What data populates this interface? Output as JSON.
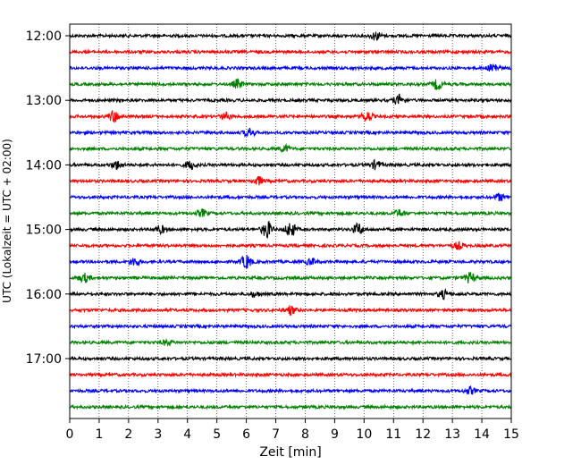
{
  "chart_data": {
    "type": "line",
    "title": "",
    "xlabel": "Zeit  [min]",
    "ylabel": "UTC (Lokalzeit = UTC + 02:00)",
    "xlim": [
      0,
      15
    ],
    "x_ticks": [
      "0",
      "1",
      "2",
      "3",
      "4",
      "5",
      "6",
      "7",
      "8",
      "9",
      "10",
      "11",
      "12",
      "13",
      "14",
      "15"
    ],
    "y_ticks": [
      "12:00",
      "13:00",
      "14:00",
      "15:00",
      "16:00",
      "17:00"
    ],
    "grid": "vertical dotted lines at each minute",
    "row_interval_minutes": 15,
    "series": [
      {
        "start": "12:00",
        "color": "#000000",
        "events": [
          [
            10.4,
            0.5
          ]
        ]
      },
      {
        "start": "12:15",
        "color": "#ff0000",
        "events": []
      },
      {
        "start": "12:30",
        "color": "#0000ff",
        "events": [
          [
            14.4,
            0.6
          ]
        ]
      },
      {
        "start": "12:45",
        "color": "#008000",
        "events": [
          [
            5.7,
            0.5
          ],
          [
            12.5,
            0.6
          ]
        ]
      },
      {
        "start": "13:00",
        "color": "#000000",
        "events": [
          [
            11.2,
            0.6
          ]
        ]
      },
      {
        "start": "13:15",
        "color": "#ff0000",
        "events": [
          [
            1.5,
            0.7
          ],
          [
            5.3,
            0.4
          ],
          [
            10.1,
            0.6
          ]
        ]
      },
      {
        "start": "13:30",
        "color": "#0000ff",
        "events": [
          [
            6.1,
            0.5
          ]
        ]
      },
      {
        "start": "13:45",
        "color": "#008000",
        "events": [
          [
            7.3,
            0.4
          ]
        ]
      },
      {
        "start": "14:00",
        "color": "#000000",
        "events": [
          [
            1.6,
            0.5
          ],
          [
            4.1,
            0.5
          ],
          [
            10.4,
            0.5
          ]
        ]
      },
      {
        "start": "14:15",
        "color": "#ff0000",
        "events": [
          [
            6.4,
            0.5
          ]
        ]
      },
      {
        "start": "14:30",
        "color": "#0000ff",
        "events": [
          [
            14.6,
            0.4
          ]
        ]
      },
      {
        "start": "14:45",
        "color": "#008000",
        "events": [
          [
            4.5,
            0.4
          ],
          [
            11.2,
            0.4
          ]
        ]
      },
      {
        "start": "15:00",
        "color": "#000000",
        "events": [
          [
            6.7,
            1.0
          ],
          [
            7.5,
            0.9
          ],
          [
            9.8,
            0.7
          ],
          [
            3.1,
            0.4
          ]
        ]
      },
      {
        "start": "15:15",
        "color": "#ff0000",
        "events": [
          [
            13.2,
            0.4
          ]
        ]
      },
      {
        "start": "15:30",
        "color": "#0000ff",
        "events": [
          [
            2.2,
            0.5
          ],
          [
            6.0,
            0.8
          ],
          [
            8.2,
            0.4
          ]
        ]
      },
      {
        "start": "15:45",
        "color": "#008000",
        "events": [
          [
            0.5,
            0.5
          ],
          [
            13.6,
            0.6
          ]
        ]
      },
      {
        "start": "16:00",
        "color": "#000000",
        "events": [
          [
            12.7,
            0.5
          ],
          [
            6.3,
            0.3
          ]
        ]
      },
      {
        "start": "16:15",
        "color": "#ff0000",
        "events": [
          [
            7.5,
            0.5
          ]
        ]
      },
      {
        "start": "16:30",
        "color": "#0000ff",
        "events": []
      },
      {
        "start": "16:45",
        "color": "#008000",
        "events": [
          [
            3.3,
            0.3
          ]
        ]
      },
      {
        "start": "17:00",
        "color": "#000000",
        "events": []
      },
      {
        "start": "17:15",
        "color": "#ff0000",
        "events": []
      },
      {
        "start": "17:30",
        "color": "#0000ff",
        "events": [
          [
            13.6,
            0.4
          ]
        ]
      },
      {
        "start": "17:45",
        "color": "#008000",
        "events": []
      }
    ]
  }
}
